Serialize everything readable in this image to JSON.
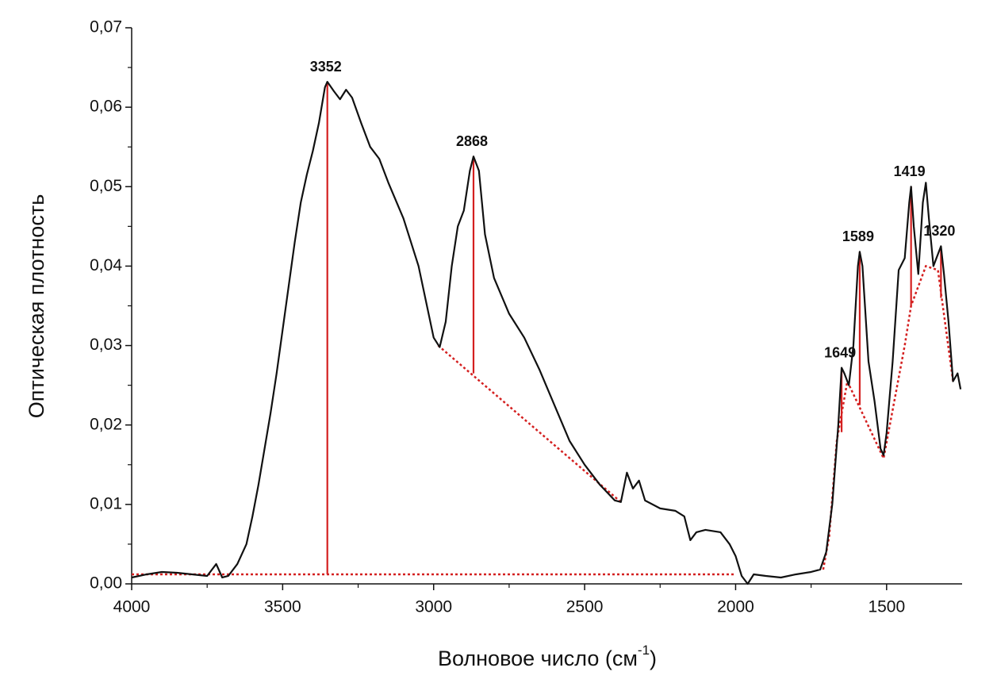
{
  "chart_data": {
    "type": "line",
    "y_label": "Оптическая плотность",
    "x_label": [
      "Волновое число (см",
      "-1",
      ")"
    ],
    "xlim": [
      4000,
      1250
    ],
    "ylim": [
      0,
      0.07
    ],
    "xticks": [
      4000,
      3500,
      3000,
      2500,
      2000,
      1500
    ],
    "xticks_minor": [
      3750,
      3250,
      2750,
      2250,
      1750
    ],
    "yticks": [
      {
        "value": 0,
        "label": "0,00"
      },
      {
        "value": 0.01,
        "label": "0,01"
      },
      {
        "value": 0.02,
        "label": "0,02"
      },
      {
        "value": 0.03,
        "label": "0,03"
      },
      {
        "value": 0.04,
        "label": "0,04"
      },
      {
        "value": 0.05,
        "label": "0,05"
      },
      {
        "value": 0.06,
        "label": "0,06"
      },
      {
        "value": 0.07,
        "label": "0,07"
      }
    ],
    "yticks_minor": [
      0.005,
      0.015,
      0.025,
      0.035,
      0.045,
      0.055,
      0.065
    ],
    "x": [
      4000,
      3950,
      3900,
      3850,
      3800,
      3750,
      3720,
      3700,
      3680,
      3650,
      3620,
      3600,
      3580,
      3560,
      3540,
      3520,
      3500,
      3480,
      3460,
      3440,
      3420,
      3400,
      3380,
      3360,
      3352,
      3330,
      3310,
      3290,
      3270,
      3240,
      3210,
      3180,
      3150,
      3100,
      3050,
      3000,
      2980,
      2960,
      2940,
      2920,
      2900,
      2880,
      2868,
      2850,
      2830,
      2800,
      2750,
      2700,
      2650,
      2600,
      2550,
      2500,
      2450,
      2400,
      2380,
      2360,
      2340,
      2320,
      2300,
      2250,
      2200,
      2170,
      2150,
      2130,
      2100,
      2050,
      2020,
      2000,
      1980,
      1960,
      1940,
      1900,
      1850,
      1800,
      1750,
      1720,
      1700,
      1680,
      1660,
      1649,
      1640,
      1625,
      1610,
      1595,
      1589,
      1580,
      1560,
      1540,
      1520,
      1510,
      1500,
      1480,
      1460,
      1440,
      1425,
      1419,
      1410,
      1395,
      1380,
      1370,
      1360,
      1345,
      1330,
      1320,
      1310,
      1295,
      1280,
      1265,
      1255
    ],
    "series": [
      {
        "color": "#111111",
        "values": [
          0.0008,
          0.0012,
          0.0015,
          0.0014,
          0.0012,
          0.001,
          0.0025,
          0.0008,
          0.001,
          0.0025,
          0.005,
          0.0085,
          0.0125,
          0.017,
          0.0215,
          0.0265,
          0.032,
          0.0375,
          0.043,
          0.048,
          0.0515,
          0.0545,
          0.058,
          0.0625,
          0.0632,
          0.062,
          0.061,
          0.0622,
          0.0612,
          0.058,
          0.055,
          0.0535,
          0.0505,
          0.046,
          0.04,
          0.031,
          0.0298,
          0.033,
          0.04,
          0.045,
          0.047,
          0.052,
          0.0538,
          0.052,
          0.044,
          0.0385,
          0.034,
          0.031,
          0.027,
          0.0225,
          0.018,
          0.015,
          0.0125,
          0.0105,
          0.0103,
          0.014,
          0.012,
          0.013,
          0.0105,
          0.0095,
          0.0092,
          0.0085,
          0.0055,
          0.0065,
          0.0068,
          0.0065,
          0.005,
          0.0035,
          0.001,
          0.0,
          0.0012,
          0.001,
          0.0008,
          0.0012,
          0.0015,
          0.0018,
          0.004,
          0.01,
          0.02,
          0.0272,
          0.0265,
          0.025,
          0.03,
          0.04,
          0.0418,
          0.04,
          0.028,
          0.023,
          0.017,
          0.0162,
          0.019,
          0.028,
          0.0395,
          0.041,
          0.048,
          0.05,
          0.045,
          0.039,
          0.048,
          0.0505,
          0.046,
          0.04,
          0.0415,
          0.0425,
          0.039,
          0.033,
          0.0255,
          0.0265,
          0.0245
        ]
      }
    ],
    "baselines": [
      {
        "color": "#d42020",
        "x": [
          4000,
          2000
        ],
        "values": [
          0.0012,
          0.0012
        ]
      },
      {
        "color": "#d42020",
        "x": [
          2985,
          2380
        ],
        "values": [
          0.03,
          0.0103
        ]
      },
      {
        "color": "#d42020",
        "x": [
          1710,
          1690,
          1665,
          1630,
          1510,
          1440,
          1419,
          1370,
          1330,
          1280
        ],
        "values": [
          0.0018,
          0.006,
          0.018,
          0.0255,
          0.0158,
          0.03,
          0.035,
          0.04,
          0.0395,
          0.0255
        ]
      }
    ],
    "peak_color": "#d42020",
    "peaks": [
      {
        "x": 3352,
        "y": 0.0632,
        "base": 0.0012
      },
      {
        "x": 2868,
        "y": 0.0538,
        "base": 0.0265
      },
      {
        "x": 1649,
        "y": 0.0272,
        "base": 0.0191
      },
      {
        "x": 1589,
        "y": 0.0418,
        "base": 0.0225
      },
      {
        "x": 1419,
        "y": 0.05,
        "base": 0.035
      },
      {
        "x": 1320,
        "y": 0.0425,
        "base": 0.036
      }
    ]
  }
}
